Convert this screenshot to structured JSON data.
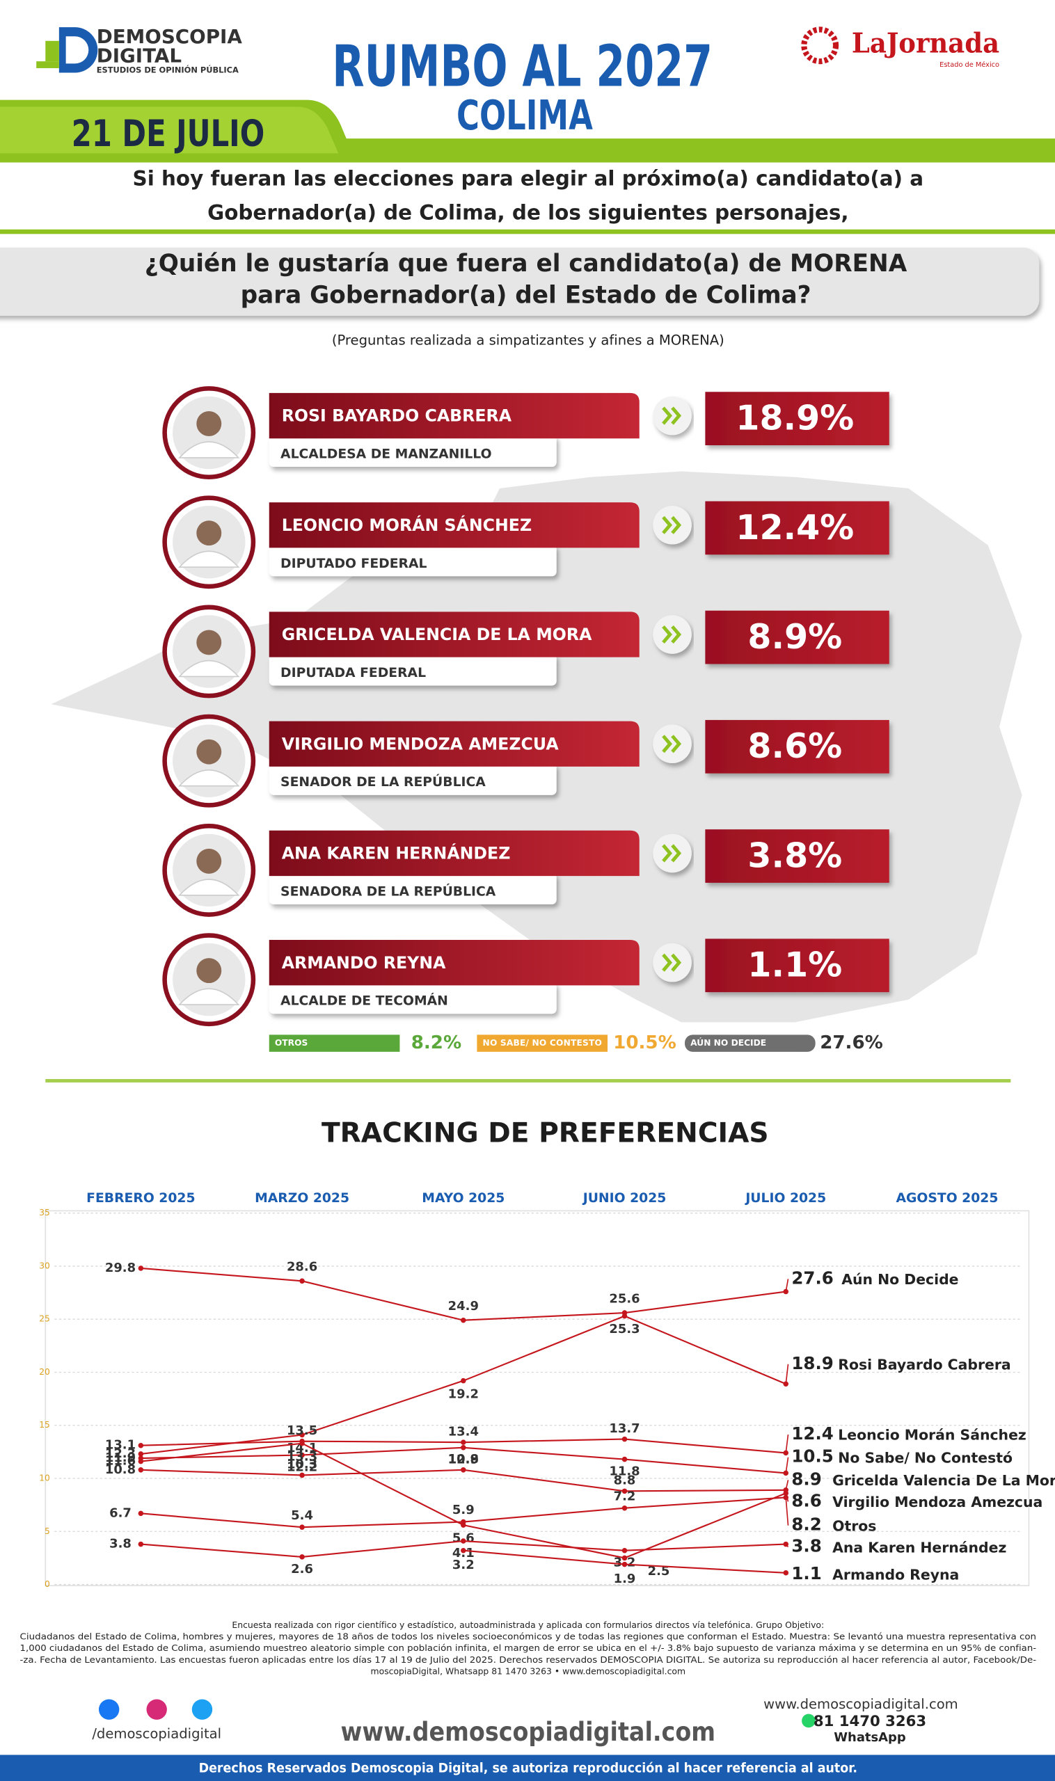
{
  "header": {
    "logo": [
      "DEMOSCOPIA",
      "DIGITAL",
      "ESTUDIOS DE OPINIÓN PÚBLICA"
    ],
    "title": "RUMBO AL 2027",
    "subtitle": "COLIMA",
    "brand": "LaJornada",
    "brand_sub": "Estado de México",
    "date": "21 DE JULIO"
  },
  "intro": [
    "Si hoy fueran las elecciones para elegir al próximo(a) candidato(a) a",
    "Gobernador(a) de Colima, de los siguientes personajes,"
  ],
  "question": [
    "¿Quién le gustaría que fuera el candidato(a) de MORENA",
    "para Gobernador(a) del Estado de Colima?"
  ],
  "note": "(Preguntas realizada a simpatizantes y afines a MORENA)",
  "candidates": [
    {
      "name": "ROSI BAYARDO CABRERA",
      "role": "ALCALDESA DE MANZANILLO",
      "result": "18.9%"
    },
    {
      "name": "LEONCIO MORÁN SÁNCHEZ",
      "role": "DIPUTADO FEDERAL",
      "result": "12.4%"
    },
    {
      "name": "GRICELDA VALENCIA DE LA MORA",
      "role": "DIPUTADA FEDERAL",
      "result": "8.9%"
    },
    {
      "name": "VIRGILIO MENDOZA AMEZCUA",
      "role": "SENADOR DE LA REPÚBLICA",
      "result": "8.6%"
    },
    {
      "name": "ANA KAREN HERNÁNDEZ",
      "role": "SENADORA DE LA REPÚBLICA",
      "result": "3.8%"
    },
    {
      "name": "ARMANDO REYNA",
      "role": "ALCALDE DE TECOMÁN",
      "result": "1.1%"
    }
  ],
  "summary": [
    {
      "label": "OTROS",
      "result": "8.2%",
      "color": "#5aa83a"
    },
    {
      "label": "NO SABE/ NO CONTESTO",
      "result": "10.5%",
      "color": "#f0a830"
    },
    {
      "label": "AÚN NO DECIDE",
      "result": "27.6%",
      "color": "#6f6f6f"
    }
  ],
  "chart_data": {
    "type": "line",
    "title": "TRACKING DE PREFERENCIAS",
    "categories": [
      "FEBRERO 2025",
      "MARZO 2025",
      "MAYO 2025",
      "JUNIO 2025",
      "JULIO 2025",
      "AGOSTO 2025"
    ],
    "ylim": [
      0,
      35
    ],
    "yticks": [
      0,
      5,
      10,
      15,
      20,
      25,
      30,
      35
    ],
    "grid": true,
    "series": [
      {
        "name": "Aún No Decide",
        "color": "#c4161c",
        "values": [
          29.8,
          28.6,
          24.9,
          25.6,
          27.6,
          null
        ]
      },
      {
        "name": "Rosi Bayardo Cabrera",
        "color": "#c4161c",
        "values": [
          12.3,
          14.1,
          19.2,
          25.3,
          18.9,
          null
        ]
      },
      {
        "name": "Leoncio Morán Sánchez",
        "color": "#c4161c",
        "values": [
          13.1,
          13.5,
          13.4,
          13.7,
          12.4,
          null
        ]
      },
      {
        "name": "No Sabe/ No Contestó",
        "color": "#c4161c",
        "values": [
          11.9,
          12.2,
          12.9,
          11.8,
          10.5,
          null
        ]
      },
      {
        "name": "Gricelda Valencia De La Mora",
        "color": "#c4161c",
        "values": [
          10.8,
          10.3,
          10.8,
          8.8,
          8.9,
          null
        ]
      },
      {
        "name": "Virgilio Mendoza Amezcua",
        "color": "#c4161c",
        "values": [
          11.6,
          13.3,
          5.6,
          2.5,
          8.6,
          null
        ]
      },
      {
        "name": "Otros",
        "color": "#c4161c",
        "values": [
          6.7,
          5.4,
          5.9,
          7.2,
          8.2,
          null
        ]
      },
      {
        "name": "Ana Karen Hernández",
        "color": "#c4161c",
        "values": [
          3.8,
          2.6,
          4.1,
          3.2,
          3.8,
          null
        ]
      },
      {
        "name": "Armando Reyna",
        "color": "#c4161c",
        "values": [
          null,
          null,
          3.2,
          1.9,
          1.1,
          null
        ]
      }
    ]
  },
  "footer": {
    "disclaimer": [
      "Encuesta realizada con rigor científico y estadístico, autoadministrada y aplicada con formularios directos vía telefónica. Grupo Objetivo:",
      "Ciudadanos del Estado de Colima, hombres y mujeres, mayores de 18 años de todos los niveles socioeconómicos y de todas las regiones que conforman el Estado. Muestra: Se levantó una muestra representativa con",
      "1,000 ciudadanos del Estado de Colima, asumiendo muestreo aleatorio simple con población infinita, el margen de error se ubica en el +/- 3.8% bajo supuesto de varianza máxima y se determina en un 95% de confian-",
      "-za. Fecha de Levantamiento. Las encuestas fueron aplicadas entre los días 17 al 19 de Julio del 2025. Derechos reservados DEMOSCOPIA DIGITAL. Se autoriza su reproducción al hacer referencia al autor, Facebook/De-",
      "moscopiaDigital, Whatsapp 81 1470 3263 • www.demoscopiadigital.com"
    ],
    "social": "/demoscopiadigital",
    "website": "www.demoscopiadigital.com",
    "contact_site": "www.demoscopiadigital.com",
    "phone": "81 1470 3263",
    "phone_label": "WhatsApp",
    "rights": "Derechos Reservados Demoscopia Digital, se autoriza reproducción al hacer referencia al autor."
  }
}
